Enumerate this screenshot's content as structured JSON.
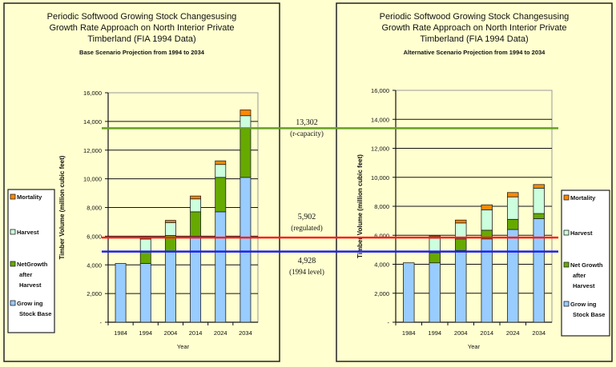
{
  "chart_data": [
    {
      "type": "bar",
      "stacked": true,
      "title_lines": [
        "Periodic Softwood Growing Stock Changesusing",
        "Growth Rate Approach on North Interior Private",
        "Timberland (FIA 1994 Data)"
      ],
      "subtitle": "Base Scenario Projection from 1994 to 2034",
      "xlabel": "Year",
      "ylabel": "Timber Volume (million cubic feet)",
      "ylim": [
        0,
        16000
      ],
      "yticks": [
        0,
        2000,
        4000,
        6000,
        8000,
        10000,
        12000,
        14000,
        16000
      ],
      "ytick_labels": [
        "-",
        "2,000",
        "4,000",
        "6,000",
        "8,000",
        "10,000",
        "12,000",
        "14,000",
        "16,000"
      ],
      "grid": true,
      "legend_position": "left",
      "categories": [
        "1984",
        "1994",
        "2004",
        "2014",
        "2024",
        "2034"
      ],
      "series": [
        {
          "name": "Growing Stock Base",
          "legend_lines": [
            "Grow ing",
            "Stock Base"
          ],
          "color": "#99ccff",
          "values": [
            4100,
            4100,
            4950,
            6000,
            7700,
            10100
          ]
        },
        {
          "name": "NetGrowth after Harvest",
          "legend_lines": [
            "NetGrowth",
            "after",
            "Harvest"
          ],
          "color": "#66aa00",
          "values": [
            0,
            800,
            1100,
            1700,
            2400,
            3400
          ]
        },
        {
          "name": "Harvest",
          "legend_lines": [
            "Harvest"
          ],
          "color": "#ccffdd",
          "values": [
            0,
            900,
            900,
            900,
            900,
            900
          ]
        },
        {
          "name": "Mortality",
          "legend_lines": [
            "Mortality"
          ],
          "color": "#ff8800",
          "values": [
            0,
            150,
            150,
            200,
            250,
            400
          ]
        }
      ]
    },
    {
      "type": "bar",
      "stacked": true,
      "title_lines": [
        "Periodic Softwood Growing Stock Changesusing",
        "Growth Rate Approach on North Interior Private",
        "Timberland (FIA 1994 Data)"
      ],
      "subtitle": "Alternative Scenario Projection from 1994 to 2034",
      "xlabel": "Year",
      "ylabel": "Timber Volume (million cubic feet)",
      "ylim": [
        0,
        16000
      ],
      "yticks": [
        0,
        2000,
        4000,
        6000,
        8000,
        10000,
        12000,
        14000,
        16000
      ],
      "ytick_labels": [
        "-",
        "2,000",
        "4,000",
        "6,000",
        "8,000",
        "10,000",
        "12,000",
        "14,000",
        "16,000"
      ],
      "grid": true,
      "legend_position": "right",
      "categories": [
        "1984",
        "1994",
        "2004",
        "2014",
        "2024",
        "2034"
      ],
      "series": [
        {
          "name": "Growing Stock Base",
          "legend_lines": [
            "Grow ing",
            "Stock Base"
          ],
          "color": "#99ccff",
          "values": [
            4100,
            4100,
            4950,
            5750,
            6400,
            7150
          ]
        },
        {
          "name": "Net Growth after Harvest",
          "legend_lines": [
            "Net Growth",
            "after",
            "Harvest"
          ],
          "color": "#66aa00",
          "values": [
            0,
            700,
            800,
            600,
            700,
            350
          ]
        },
        {
          "name": "Harvest",
          "legend_lines": [
            "Harvest"
          ],
          "color": "#ccffdd",
          "values": [
            0,
            1000,
            1100,
            1400,
            1550,
            1750
          ]
        },
        {
          "name": "Mortality",
          "legend_lines": [
            "Mortality"
          ],
          "color": "#ff8800",
          "values": [
            0,
            150,
            200,
            350,
            300,
            250
          ]
        }
      ]
    }
  ],
  "reference_lines": [
    {
      "value": 13302,
      "label": "13,302",
      "note": "(r-capacity)",
      "color": "#66a020"
    },
    {
      "value": 5902,
      "label": "5,902",
      "note": "(regulated)",
      "color": "#ff2020"
    },
    {
      "value": 4928,
      "label": "4,928",
      "note": "(1994 level)",
      "color": "#2020ee"
    }
  ]
}
